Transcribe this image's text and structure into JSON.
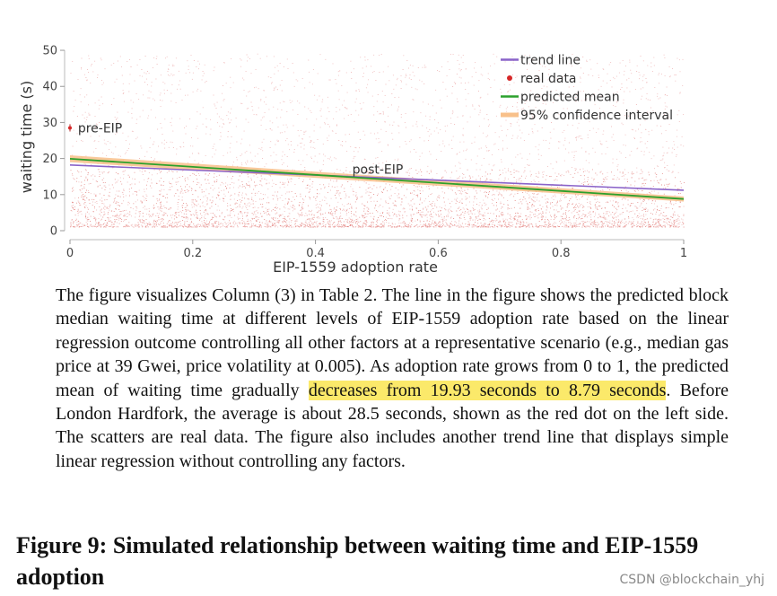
{
  "chart_data": {
    "type": "line",
    "xlabel": "EIP-1559 adoption rate",
    "ylabel": "waiting time (s)",
    "xlim": [
      0,
      1
    ],
    "ylim": [
      0,
      52
    ],
    "x_ticks": [
      "0",
      "0.2",
      "0.4",
      "0.6",
      "0.8",
      "1"
    ],
    "x_tick_values": [
      0,
      0.2,
      0.4,
      0.6,
      0.8,
      1
    ],
    "y_ticks": [
      "0",
      "10",
      "20",
      "30",
      "40",
      "50"
    ],
    "y_tick_values": [
      0,
      10,
      20,
      30,
      40,
      50
    ],
    "legend": [
      {
        "label": "trend line",
        "color": "#8a63c9"
      },
      {
        "label": "real data",
        "color": "#d62728"
      },
      {
        "label": "predicted mean",
        "color": "#2ca02c"
      },
      {
        "label": "95% confidence interval",
        "color": "#f8c08a"
      }
    ],
    "legend_position": "top-right",
    "series": [
      {
        "name": "trend line",
        "x": [
          0,
          1
        ],
        "y": [
          18.2,
          11.2
        ]
      },
      {
        "name": "predicted mean",
        "x": [
          0,
          1
        ],
        "y": [
          19.93,
          8.79
        ]
      },
      {
        "name": "95% confidence interval",
        "x": [
          0,
          1
        ],
        "lower": [
          19.0,
          8.1
        ],
        "upper": [
          20.9,
          9.5
        ]
      }
    ],
    "pre_eip_point": {
      "x": 0,
      "y": 28.5,
      "label": "pre-EIP"
    },
    "annotations": [
      {
        "text": "post-EIP",
        "x": 0.46,
        "y": 17
      },
      {
        "text": "pre-EIP",
        "x": 0.01,
        "y": 28.5
      }
    ]
  },
  "caption": {
    "before": "The figure visualizes Column (3) in Table 2. The line in the figure shows the predicted block median waiting time at different levels of EIP-1559 adoption rate based on the linear regression outcome controlling all other factors at a representative scenario (e.g., median gas price at 39 Gwei, price volatility at 0.005). As adoption rate grows from 0 to 1, the predicted mean of waiting time gradually ",
    "highlight": "decreases from 19.93 seconds to 8.79 seconds",
    "after": ". Before London Hardfork, the average is about 28.5 seconds, shown as the red dot on the left side. The scatters are real data. The figure also includes another trend line that displays simple linear regression without controlling any factors."
  },
  "figure_title": "Figure 9: Simulated relationship between waiting time and EIP-1559 adoption",
  "watermark": "CSDN @blockchain_yhj"
}
